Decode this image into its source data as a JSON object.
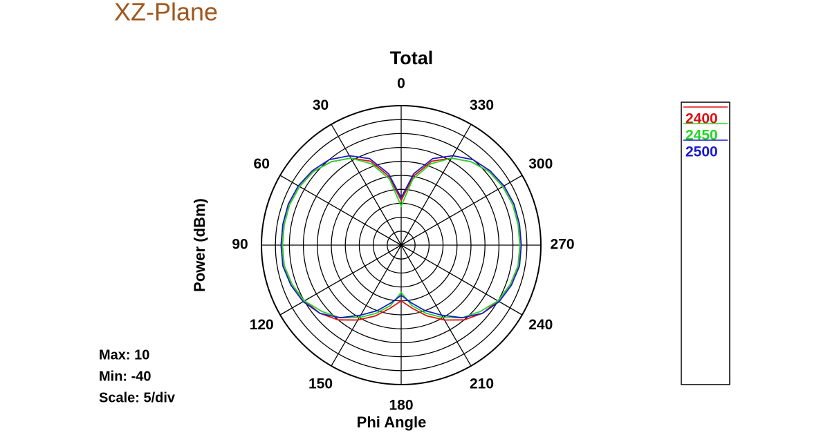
{
  "chart_data": {
    "type": "polar",
    "title": "XZ-Plane",
    "subtitle": "Total",
    "x_label": "Phi Angle",
    "y_label": "Power  (dBm)",
    "annotations": [
      "Max: 10",
      "Min: -40",
      "Scale: 5/div"
    ],
    "theta_direction": "counterclockwise",
    "theta_zero": "top",
    "theta": [
      0,
      10,
      20,
      30,
      40,
      50,
      60,
      70,
      80,
      90,
      100,
      110,
      120,
      130,
      140,
      150,
      160,
      170,
      180,
      190,
      200,
      210,
      220,
      230,
      240,
      250,
      260,
      270,
      280,
      290,
      300,
      310,
      320,
      330,
      340,
      350
    ],
    "thetaticks": [
      0,
      30,
      60,
      90,
      120,
      150,
      180,
      210,
      240,
      270,
      300,
      330
    ],
    "rlim": [
      -40,
      10
    ],
    "rticks": [
      -40,
      -35,
      -30,
      -25,
      -20,
      -15,
      -10,
      -5,
      0,
      5,
      10
    ],
    "grid": true,
    "legend": "right",
    "series": [
      {
        "name": "2400",
        "color": "#e01010",
        "values": [
          -24,
          -15,
          -8,
          -4,
          -1,
          1,
          2,
          2.5,
          2.5,
          2.5,
          2.5,
          1.5,
          0,
          -2,
          -5,
          -9,
          -13,
          -17,
          -20,
          -17,
          -13,
          -9,
          -5,
          -2,
          0,
          1.5,
          2.5,
          2.5,
          2.5,
          2.5,
          2,
          1,
          -1,
          -4,
          -8,
          -15
        ]
      },
      {
        "name": "2450",
        "color": "#22d822",
        "values": [
          -26,
          -16,
          -9,
          -4,
          -1,
          1,
          2,
          2.5,
          2.5,
          2.5,
          2.5,
          1.5,
          0,
          -3,
          -6,
          -10,
          -14,
          -18,
          -23,
          -18,
          -14,
          -10,
          -6,
          -3,
          0,
          1.5,
          2.5,
          2.5,
          2.5,
          2.5,
          2,
          1,
          -1,
          -4,
          -9,
          -16
        ]
      },
      {
        "name": "2500",
        "color": "#1a1acc",
        "values": [
          -23,
          -14,
          -7,
          -3,
          0,
          1.5,
          2.5,
          3,
          3,
          3,
          3,
          2,
          0.5,
          -2,
          -6,
          -11,
          -15,
          -19,
          -22,
          -19,
          -15,
          -11,
          -6,
          -2,
          0.5,
          2,
          3,
          3,
          3,
          3,
          2.5,
          1.5,
          0,
          -3,
          -7,
          -14
        ]
      }
    ]
  }
}
